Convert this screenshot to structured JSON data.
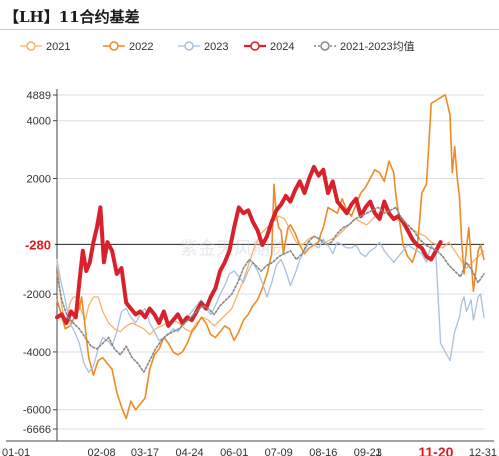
{
  "title": "【LH】11合约基差",
  "chart_data": {
    "type": "line",
    "title": "【LH】11合约基差",
    "legend_position": "top",
    "grid": "horizontal",
    "ylim": [
      -6666,
      4889
    ],
    "yticks": [
      {
        "value": 4889,
        "label": "4889"
      },
      {
        "value": 4000,
        "label": "4000"
      },
      {
        "value": 2000,
        "label": "2000"
      },
      {
        "value": -2000,
        "label": "-2000"
      },
      {
        "value": -4000,
        "label": "-4000"
      },
      {
        "value": -6000,
        "label": "-6000"
      },
      {
        "value": -6666,
        "label": "-6666"
      }
    ],
    "xticks": [
      {
        "x": 1,
        "label": "01-01"
      },
      {
        "x": 39,
        "label": "02-08"
      },
      {
        "x": 76,
        "label": "03-17"
      },
      {
        "x": 114,
        "label": "04-24"
      },
      {
        "x": 152,
        "label": "06-01"
      },
      {
        "x": 190,
        "label": "07-09"
      },
      {
        "x": 228,
        "label": "08-16"
      },
      {
        "x": 266,
        "label": "09-23"
      },
      {
        "x": 275,
        "label": "1"
      },
      {
        "x": 324,
        "label": "11-20"
      },
      {
        "x": 365,
        "label": "12-31"
      }
    ],
    "xlim": [
      1,
      365
    ],
    "highlight_x": {
      "x": 324,
      "label": "11-20"
    },
    "reference_line": {
      "value": -280,
      "label": "-280"
    },
    "series": [
      {
        "name": "2021",
        "color": "#f7b26b",
        "dash": false,
        "marker": "circle",
        "width": 1.3,
        "x": [
          1,
          5,
          8,
          10,
          12,
          15,
          18,
          22,
          25,
          28,
          32,
          36,
          40,
          45,
          50,
          55,
          60,
          65,
          70,
          75,
          80,
          85,
          90,
          95,
          100,
          105,
          110,
          115,
          120,
          125,
          130,
          135,
          140,
          145,
          150,
          155,
          160,
          165,
          170,
          175,
          180,
          185,
          190,
          195,
          200,
          205,
          210,
          215,
          220,
          225,
          230,
          235,
          240,
          245,
          250,
          255,
          260,
          265,
          270,
          275,
          280,
          285,
          290,
          295,
          300,
          305,
          310,
          315,
          320,
          325,
          330,
          335,
          340,
          345,
          350,
          355,
          360,
          365
        ],
        "values": [
          -900,
          -2400,
          -3000,
          -2800,
          -2300,
          -2100,
          -2100,
          -2600,
          -2900,
          -2400,
          -2100,
          -2100,
          -2600,
          -3000,
          -3200,
          -3300,
          -3100,
          -3000,
          -3100,
          -3200,
          -3400,
          -3200,
          -3100,
          -3000,
          -2900,
          -3000,
          -3200,
          -3300,
          -3000,
          -2800,
          -2900,
          -3100,
          -2900,
          -2700,
          -2500,
          -2000,
          -1500,
          -900,
          -300,
          100,
          300,
          500,
          700,
          600,
          200,
          -200,
          -300,
          -100,
          0,
          -100,
          -200,
          -100,
          0,
          200,
          400,
          600,
          500,
          400,
          600,
          800,
          900,
          700,
          600,
          500,
          300,
          200,
          100,
          0,
          -200,
          -300,
          -400,
          -200,
          -500,
          -800,
          -1100,
          -900,
          -700,
          -500
        ]
      },
      {
        "name": "2022",
        "color": "#f08a24",
        "dash": false,
        "marker": "circle",
        "width": 1.6,
        "x": [
          1,
          4,
          8,
          12,
          16,
          20,
          22,
          24,
          28,
          32,
          36,
          40,
          44,
          48,
          52,
          56,
          60,
          64,
          68,
          72,
          76,
          80,
          84,
          88,
          92,
          96,
          100,
          104,
          108,
          112,
          116,
          120,
          124,
          128,
          132,
          136,
          140,
          144,
          148,
          152,
          156,
          160,
          164,
          168,
          172,
          176,
          180,
          184,
          186,
          188,
          190,
          192,
          194,
          196,
          198,
          200,
          204,
          208,
          212,
          216,
          220,
          224,
          226,
          228,
          232,
          236,
          240,
          244,
          248,
          252,
          256,
          260,
          264,
          268,
          272,
          276,
          280,
          284,
          288,
          290,
          292,
          296,
          300,
          304,
          308,
          310,
          312,
          316,
          320,
          324,
          328,
          332,
          336,
          338,
          340,
          342,
          344,
          346,
          348,
          350,
          352,
          354,
          356,
          358,
          360,
          362,
          365
        ],
        "values": [
          -2200,
          -2600,
          -3200,
          -3100,
          -2800,
          -2500,
          -2100,
          -2800,
          -4200,
          -4800,
          -4300,
          -4200,
          -4400,
          -4600,
          -5400,
          -5900,
          -6300,
          -5700,
          -6000,
          -5800,
          -5600,
          -4600,
          -4100,
          -3900,
          -3500,
          -3700,
          -4000,
          -4100,
          -4000,
          -3700,
          -3300,
          -3100,
          -2800,
          -3000,
          -3400,
          -3500,
          -3300,
          -3100,
          -3200,
          -3600,
          -3300,
          -2900,
          -2700,
          -2400,
          -2200,
          -1800,
          -1300,
          -600,
          1800,
          700,
          300,
          200,
          -600,
          -100,
          300,
          400,
          100,
          -300,
          -600,
          -400,
          -300,
          -200,
          100,
          300,
          1000,
          900,
          800,
          1300,
          900,
          700,
          1100,
          1500,
          1700,
          2000,
          2300,
          2200,
          1900,
          2600,
          2200,
          1400,
          800,
          -300,
          -700,
          -900,
          -400,
          500,
          1500,
          1800,
          4600,
          4700,
          4800,
          4900,
          4200,
          2200,
          3100,
          2100,
          1400,
          -200,
          -1300,
          -400,
          300,
          -800,
          -1900,
          -1200,
          -500,
          -300,
          -800
        ]
      },
      {
        "name": "2023",
        "color": "#a9c1de",
        "dash": false,
        "marker": "circle",
        "width": 1.3,
        "x": [
          1,
          4,
          8,
          12,
          16,
          20,
          24,
          28,
          32,
          36,
          40,
          44,
          48,
          52,
          56,
          60,
          64,
          68,
          72,
          76,
          80,
          84,
          88,
          92,
          96,
          100,
          104,
          108,
          112,
          116,
          120,
          124,
          128,
          132,
          136,
          140,
          144,
          148,
          152,
          156,
          160,
          164,
          168,
          172,
          176,
          180,
          184,
          188,
          192,
          196,
          200,
          204,
          208,
          212,
          216,
          220,
          224,
          228,
          232,
          236,
          240,
          244,
          248,
          252,
          256,
          260,
          264,
          268,
          272,
          276,
          280,
          284,
          288,
          292,
          296,
          300,
          304,
          308,
          312,
          316,
          320,
          324,
          328,
          332,
          336,
          340,
          344,
          346,
          348,
          350,
          352,
          354,
          356,
          358,
          360,
          362,
          365
        ],
        "values": [
          -800,
          -1500,
          -2200,
          -3000,
          -3300,
          -3700,
          -4400,
          -4700,
          -4500,
          -3900,
          -3500,
          -3600,
          -3800,
          -3300,
          -2600,
          -2500,
          -2800,
          -3000,
          -2700,
          -2500,
          -3000,
          -3300,
          -3600,
          -3500,
          -3400,
          -3200,
          -3300,
          -3100,
          -2800,
          -2600,
          -2400,
          -2200,
          -2500,
          -2700,
          -2400,
          -2000,
          -1700,
          -1300,
          -1200,
          -1400,
          -1600,
          -1200,
          -900,
          -1200,
          -1600,
          -2100,
          -1600,
          -1000,
          -800,
          -1200,
          -1700,
          -1300,
          -800,
          -500,
          -200,
          -300,
          -400,
          -100,
          -300,
          -600,
          -200,
          -300,
          -400,
          -400,
          -300,
          -600,
          -700,
          -500,
          -400,
          -200,
          -500,
          -700,
          -900,
          -700,
          -500,
          -300,
          -400,
          -500,
          -600,
          -900,
          -300,
          -600,
          -3700,
          -4000,
          -4300,
          -3300,
          -2800,
          -2300,
          -2100,
          -2600,
          -2400,
          -2200,
          -2900,
          -2500,
          -2100,
          -2000,
          -2800
        ]
      },
      {
        "name": "2024",
        "color": "#d9212d",
        "dash": false,
        "marker": "circle",
        "width": 4,
        "x": [
          1,
          5,
          9,
          13,
          17,
          20,
          23,
          26,
          29,
          32,
          35,
          38,
          41,
          44,
          48,
          52,
          56,
          60,
          64,
          68,
          72,
          76,
          80,
          84,
          88,
          92,
          96,
          100,
          104,
          108,
          112,
          116,
          120,
          124,
          128,
          132,
          136,
          140,
          144,
          148,
          152,
          156,
          160,
          164,
          168,
          172,
          176,
          180,
          184,
          188,
          192,
          196,
          200,
          204,
          208,
          212,
          216,
          220,
          224,
          228,
          232,
          236,
          240,
          244,
          248,
          252,
          256,
          260,
          264,
          268,
          272,
          276,
          280,
          284,
          288,
          292,
          296,
          300,
          304,
          308,
          312,
          316,
          320,
          324,
          328
        ],
        "values": [
          -2800,
          -2700,
          -3000,
          -2600,
          -2800,
          -1600,
          -500,
          -1200,
          -900,
          -200,
          300,
          1000,
          -900,
          -200,
          -500,
          -1300,
          -1100,
          -2300,
          -2500,
          -2700,
          -2600,
          -2800,
          -2500,
          -2700,
          -3000,
          -2600,
          -3100,
          -2900,
          -2700,
          -3000,
          -2800,
          -2900,
          -2600,
          -2300,
          -2500,
          -2100,
          -1800,
          -1200,
          -900,
          -500,
          300,
          1000,
          800,
          900,
          500,
          200,
          -300,
          0,
          500,
          900,
          1100,
          1400,
          1200,
          1600,
          1900,
          1500,
          2000,
          2400,
          2100,
          2300,
          1500,
          1900,
          1200,
          1000,
          800,
          1100,
          1300,
          700,
          1000,
          1200,
          800,
          600,
          1200,
          800,
          600,
          700,
          500,
          200,
          -100,
          -300,
          -400,
          -700,
          -800,
          -500,
          -200
        ]
      },
      {
        "name": "2021-2023均值",
        "color": "#888888",
        "dash": true,
        "marker": "circle",
        "width": 1.6,
        "x": [
          1,
          5,
          10,
          15,
          20,
          25,
          30,
          35,
          40,
          45,
          50,
          55,
          60,
          65,
          70,
          75,
          80,
          85,
          90,
          95,
          100,
          105,
          110,
          115,
          120,
          125,
          130,
          135,
          140,
          145,
          150,
          155,
          160,
          165,
          170,
          175,
          180,
          185,
          190,
          195,
          200,
          205,
          210,
          215,
          220,
          225,
          230,
          235,
          240,
          245,
          250,
          255,
          260,
          265,
          270,
          275,
          280,
          285,
          290,
          295,
          300,
          305,
          310,
          315,
          320,
          325,
          330,
          335,
          340,
          345,
          350,
          355,
          360,
          365
        ],
        "values": [
          -1300,
          -2200,
          -2800,
          -3000,
          -3200,
          -3500,
          -3800,
          -3900,
          -3700,
          -3500,
          -3900,
          -4100,
          -3800,
          -4200,
          -4400,
          -4700,
          -4300,
          -3900,
          -3600,
          -3400,
          -3300,
          -3200,
          -3000,
          -2800,
          -2600,
          -2400,
          -2500,
          -2700,
          -2400,
          -2200,
          -2000,
          -1600,
          -1100,
          -800,
          -1000,
          -1200,
          -1000,
          -900,
          -700,
          -600,
          -500,
          -800,
          -600,
          -200,
          0,
          -100,
          -300,
          -200,
          100,
          300,
          400,
          600,
          700,
          800,
          900,
          1000,
          800,
          900,
          1000,
          600,
          400,
          200,
          -100,
          -300,
          -400,
          -500,
          -700,
          -1000,
          -1200,
          -1400,
          -900,
          -1200,
          -1600,
          -1300
        ]
      }
    ]
  }
}
